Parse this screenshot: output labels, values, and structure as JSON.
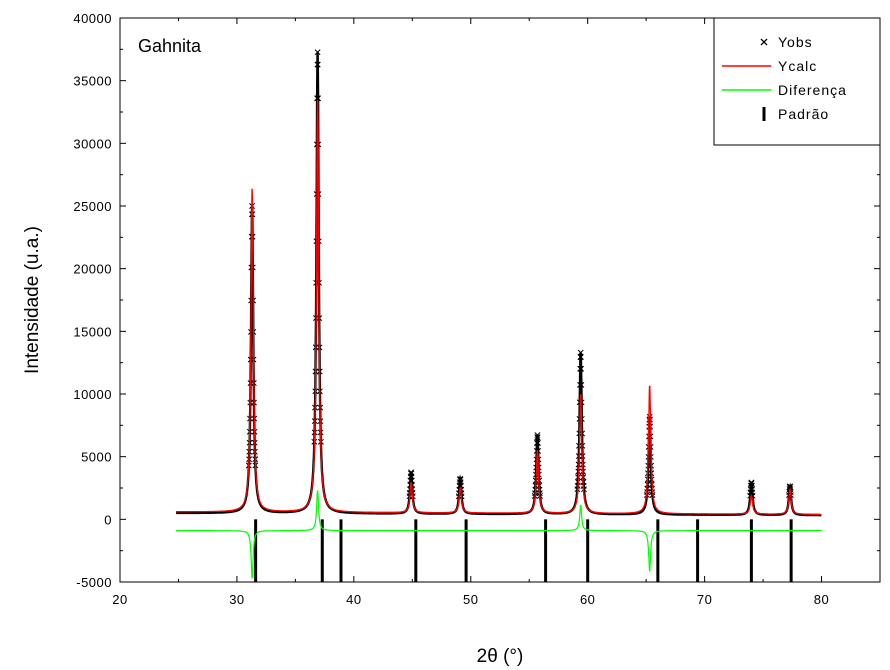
{
  "chart_data": {
    "type": "line",
    "annotation": "Gahnita",
    "xlabel": "2θ (°)",
    "ylabel": "Intensidade (u.a.)",
    "xlim": [
      20,
      85
    ],
    "ylim": [
      -5000,
      40000
    ],
    "x_ticks": [
      20,
      30,
      40,
      50,
      60,
      70,
      80
    ],
    "x_tick_labels": [
      "20",
      "30",
      "40",
      "50",
      "60",
      "70",
      "80"
    ],
    "y_ticks": [
      -5000,
      0,
      5000,
      10000,
      15000,
      20000,
      25000,
      30000,
      35000,
      40000
    ],
    "y_tick_labels": [
      "-5000",
      "0",
      "5000",
      "10000",
      "15000",
      "20000",
      "25000",
      "30000",
      "35000",
      "40000"
    ],
    "legend": {
      "position": "top-right",
      "entries": [
        "Yobs",
        "Ycalc",
        "Diferença",
        "Padrão"
      ]
    },
    "colors": {
      "yobs": "#000000",
      "ycalc": "#ff0000",
      "difference": "#00ff00",
      "pattern": "#000000"
    },
    "x_range": [
      24.8,
      80
    ],
    "background": {
      "yobs": 500,
      "ycalc": 600
    },
    "difference_baseline": -900,
    "peaks": [
      {
        "x": 31.3,
        "ycalc": 25800,
        "yobs": 24500,
        "diff": -3800
      },
      {
        "x": 36.9,
        "ycalc": 32900,
        "yobs": 36800,
        "diff": 3200
      },
      {
        "x": 44.9,
        "ycalc": 2400,
        "yobs": 3300,
        "diff": 0
      },
      {
        "x": 49.1,
        "ycalc": 2000,
        "yobs": 2800,
        "diff": 0
      },
      {
        "x": 55.7,
        "ycalc": 5000,
        "yobs": 6300,
        "diff": 0
      },
      {
        "x": 59.4,
        "ycalc": 9500,
        "yobs": 12900,
        "diff": 2000
      },
      {
        "x": 65.3,
        "ycalc": 10200,
        "yobs": 7800,
        "diff": -3200
      },
      {
        "x": 74.0,
        "ycalc": 1500,
        "yobs": 2600,
        "diff": 0
      },
      {
        "x": 77.3,
        "ycalc": 2000,
        "yobs": 2300,
        "diff": 0
      }
    ],
    "pattern_positions": [
      31.6,
      37.3,
      38.9,
      45.3,
      49.6,
      56.4,
      60.0,
      66.0,
      69.4,
      74.0,
      77.4
    ],
    "pattern_bottom": -5000,
    "pattern_top": 0
  }
}
